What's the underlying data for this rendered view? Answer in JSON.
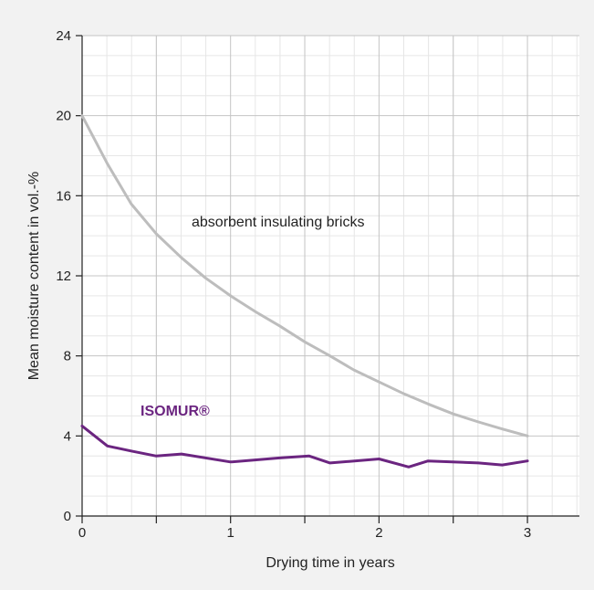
{
  "chart_data": {
    "type": "line",
    "title": "",
    "xlabel": "Drying time in years",
    "ylabel": "Mean moisture content in vol.-%",
    "xlim": [
      0,
      3.35
    ],
    "ylim": [
      0,
      24
    ],
    "x_ticks": [
      0,
      1,
      2,
      3
    ],
    "y_ticks": [
      0,
      4,
      8,
      12,
      16,
      20,
      24
    ],
    "x_tick_labels": [
      "0",
      "1",
      "2",
      "3"
    ],
    "y_tick_labels": [
      "0",
      "4",
      "8",
      "12",
      "16",
      "20",
      "24"
    ],
    "grid": true,
    "series": [
      {
        "name": "absorbent insulating bricks",
        "color": "#bdbdbd",
        "points": [
          [
            0,
            20.0
          ],
          [
            0.17,
            17.6
          ],
          [
            0.33,
            15.6
          ],
          [
            0.5,
            14.1
          ],
          [
            0.67,
            12.9
          ],
          [
            0.83,
            11.9
          ],
          [
            1.0,
            11.0
          ],
          [
            1.17,
            10.2
          ],
          [
            1.33,
            9.5
          ],
          [
            1.5,
            8.7
          ],
          [
            1.67,
            8.0
          ],
          [
            1.83,
            7.3
          ],
          [
            2.0,
            6.7
          ],
          [
            2.17,
            6.1
          ],
          [
            2.33,
            5.6
          ],
          [
            2.5,
            5.1
          ],
          [
            2.67,
            4.7
          ],
          [
            2.83,
            4.35
          ],
          [
            3.0,
            4.0
          ]
        ]
      },
      {
        "name": "ISOMUR®",
        "color": "#6b2580",
        "points": [
          [
            0,
            4.5
          ],
          [
            0.17,
            3.5
          ],
          [
            0.33,
            3.25
          ],
          [
            0.5,
            3.0
          ],
          [
            0.67,
            3.1
          ],
          [
            1.0,
            2.7
          ],
          [
            1.33,
            2.9
          ],
          [
            1.53,
            3.0
          ],
          [
            1.67,
            2.65
          ],
          [
            2.0,
            2.85
          ],
          [
            2.2,
            2.45
          ],
          [
            2.33,
            2.75
          ],
          [
            2.67,
            2.65
          ],
          [
            2.83,
            2.55
          ],
          [
            3.0,
            2.75
          ]
        ]
      }
    ]
  }
}
